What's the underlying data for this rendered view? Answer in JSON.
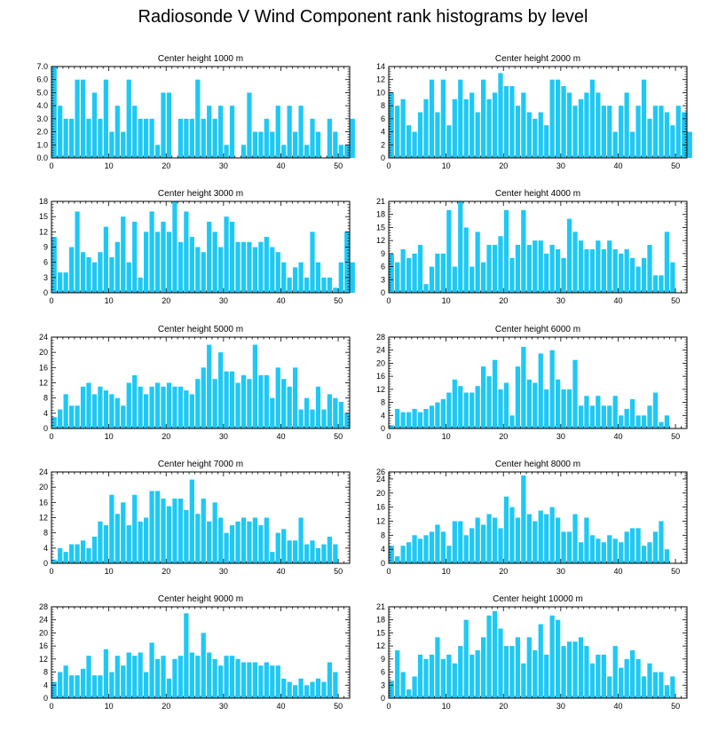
{
  "title": "Radiosonde V Wind Component rank histograms by level",
  "colors": {
    "bar": "#1EC8F5",
    "axis": "#000000",
    "background": "#FFFFFF"
  },
  "chart_data": [
    {
      "type": "bar",
      "title": "Center height 1000 m",
      "xlim": [
        0,
        52
      ],
      "ylim": [
        0,
        7
      ],
      "xticks": [
        0,
        10,
        20,
        30,
        40,
        50
      ],
      "yticks": [
        "0.0",
        "1.0",
        "2.0",
        "3.0",
        "4.0",
        "5.0",
        "6.0",
        "7.0"
      ],
      "values": [
        7,
        4,
        3,
        3,
        6,
        6,
        3,
        5,
        3,
        6,
        2,
        4,
        2,
        6,
        4,
        3,
        3,
        3,
        1,
        5,
        5,
        0,
        3,
        3,
        3,
        6,
        3,
        4,
        3,
        4,
        1,
        4,
        0,
        1,
        5,
        2,
        2,
        3,
        2,
        4,
        1,
        4,
        2,
        4,
        1,
        3,
        2,
        0,
        3,
        2,
        1,
        1,
        3
      ]
    },
    {
      "type": "bar",
      "title": "Center height 2000 m",
      "xlim": [
        0,
        52
      ],
      "ylim": [
        0,
        14
      ],
      "xticks": [
        0,
        10,
        20,
        30,
        40,
        50
      ],
      "yticks": [
        "0",
        "2",
        "4",
        "6",
        "8",
        "10",
        "12",
        "14"
      ],
      "values": [
        10,
        8,
        9,
        5,
        4,
        7,
        9,
        12,
        7,
        12,
        5,
        9,
        12,
        9,
        10,
        7,
        12,
        9,
        10,
        13,
        11,
        11,
        8,
        10,
        7,
        6,
        7,
        5,
        12,
        12,
        11,
        10,
        8,
        9,
        10,
        12,
        10,
        8,
        8,
        4,
        8,
        10,
        4,
        8,
        12,
        6,
        8,
        8,
        7,
        5,
        8,
        7,
        4
      ]
    },
    {
      "type": "bar",
      "title": "Center height 3000 m",
      "xlim": [
        0,
        52
      ],
      "ylim": [
        0,
        18
      ],
      "xticks": [
        0,
        10,
        20,
        30,
        40,
        50
      ],
      "yticks": [
        "0",
        "3",
        "6",
        "9",
        "12",
        "15",
        "18"
      ],
      "values": [
        11,
        4,
        4,
        9,
        16,
        8,
        7,
        6,
        8,
        13,
        7,
        10,
        15,
        6,
        14,
        3,
        12,
        16,
        12,
        14,
        12,
        18,
        10,
        16,
        11,
        9,
        8,
        14,
        12,
        9,
        15,
        14,
        10,
        10,
        10,
        9,
        10,
        11,
        9,
        8,
        6,
        3,
        5,
        6,
        3,
        12,
        6,
        3,
        3,
        1,
        6,
        12,
        6
      ]
    },
    {
      "type": "bar",
      "title": "Center height 4000 m",
      "xlim": [
        0,
        52
      ],
      "ylim": [
        0,
        21
      ],
      "xticks": [
        0,
        10,
        20,
        30,
        40,
        50
      ],
      "yticks": [
        "0",
        "3",
        "6",
        "9",
        "12",
        "15",
        "18",
        "21"
      ],
      "values": [
        9,
        7,
        10,
        8,
        9,
        11,
        2,
        6,
        9,
        9,
        19,
        6,
        21,
        15,
        6,
        14,
        7,
        11,
        11,
        13,
        19,
        8,
        11,
        19,
        11,
        12,
        12,
        9,
        11,
        10,
        8,
        17,
        14,
        12,
        10,
        10,
        12,
        10,
        12,
        10,
        9,
        10,
        8,
        6,
        8,
        11,
        4,
        4,
        14,
        7
      ]
    },
    {
      "type": "bar",
      "title": "Center height 5000 m",
      "xlim": [
        0,
        52
      ],
      "ylim": [
        0,
        24
      ],
      "xticks": [
        0,
        10,
        20,
        30,
        40,
        50
      ],
      "yticks": [
        "0",
        "4",
        "8",
        "12",
        "16",
        "20",
        "24"
      ],
      "values": [
        3,
        5,
        9,
        6,
        6,
        11,
        12,
        9,
        11,
        10,
        9,
        8,
        6,
        12,
        14,
        11,
        9,
        11,
        12,
        11,
        12,
        11,
        11,
        10,
        9,
        13,
        16,
        22,
        13,
        20,
        15,
        15,
        12,
        14,
        13,
        22,
        14,
        14,
        8,
        16,
        13,
        11,
        16,
        5,
        8,
        5,
        11,
        5,
        9,
        8,
        7,
        4
      ]
    },
    {
      "type": "bar",
      "title": "Center height 6000 m",
      "xlim": [
        0,
        52
      ],
      "ylim": [
        0,
        28
      ],
      "xticks": [
        0,
        10,
        20,
        30,
        40,
        50
      ],
      "yticks": [
        "0",
        "4",
        "8",
        "12",
        "16",
        "20",
        "24",
        "28"
      ],
      "values": [
        1,
        6,
        5,
        5,
        6,
        5,
        6,
        7,
        8,
        9,
        11,
        15,
        13,
        11,
        11,
        13,
        19,
        16,
        21,
        12,
        14,
        4,
        19,
        25,
        15,
        14,
        23,
        12,
        24,
        15,
        12,
        12,
        21,
        7,
        10,
        7,
        10,
        7,
        7,
        10,
        4,
        6,
        9,
        4,
        4,
        7,
        11,
        2,
        4
      ]
    },
    {
      "type": "bar",
      "title": "Center height 7000 m",
      "xlim": [
        0,
        52
      ],
      "ylim": [
        0,
        24
      ],
      "xticks": [
        0,
        10,
        20,
        30,
        40,
        50
      ],
      "yticks": [
        "0",
        "4",
        "8",
        "12",
        "16",
        "20",
        "24"
      ],
      "values": [
        1,
        4,
        3,
        5,
        5,
        6,
        4,
        7,
        11,
        10,
        18,
        13,
        16,
        10,
        18,
        11,
        12,
        19,
        19,
        17,
        15,
        17,
        17,
        14,
        22,
        13,
        17,
        11,
        16,
        12,
        8,
        10,
        11,
        12,
        11,
        12,
        10,
        12,
        3,
        8,
        9,
        6,
        6,
        12,
        5,
        6,
        4,
        5,
        7,
        5
      ]
    },
    {
      "type": "bar",
      "title": "Center height 8000 m",
      "xlim": [
        0,
        52
      ],
      "ylim": [
        0,
        26
      ],
      "xticks": [
        0,
        10,
        20,
        30,
        40,
        50
      ],
      "yticks": [
        "0",
        "4",
        "8",
        "12",
        "16",
        "20",
        "24",
        "26"
      ],
      "values": [
        5,
        2,
        5,
        6,
        8,
        7,
        8,
        9,
        11,
        9,
        5,
        12,
        12,
        8,
        10,
        13,
        11,
        14,
        13,
        10,
        19,
        16,
        13,
        25,
        14,
        12,
        15,
        14,
        16,
        13,
        9,
        9,
        14,
        6,
        13,
        8,
        7,
        6,
        8,
        7,
        6,
        9,
        10,
        10,
        5,
        6,
        9,
        12,
        4
      ]
    },
    {
      "type": "bar",
      "title": "Center height 9000 m",
      "xlim": [
        0,
        52
      ],
      "ylim": [
        0,
        28
      ],
      "xticks": [
        0,
        10,
        20,
        30,
        40,
        50
      ],
      "yticks": [
        "0",
        "4",
        "8",
        "12",
        "16",
        "20",
        "24",
        "28"
      ],
      "values": [
        5,
        8,
        10,
        7,
        7,
        9,
        13,
        7,
        7,
        15,
        8,
        13,
        10,
        14,
        13,
        14,
        8,
        17,
        12,
        13,
        6,
        12,
        13,
        26,
        14,
        13,
        20,
        14,
        12,
        10,
        13,
        13,
        12,
        11,
        11,
        11,
        10,
        11,
        10,
        10,
        6,
        5,
        4,
        6,
        4,
        5,
        6,
        5,
        11,
        8
      ]
    },
    {
      "type": "bar",
      "title": "Center height 10000 m",
      "xlim": [
        0,
        52
      ],
      "ylim": [
        0,
        21
      ],
      "xticks": [
        0,
        10,
        20,
        30,
        40,
        50
      ],
      "yticks": [
        "0",
        "3",
        "6",
        "9",
        "12",
        "15",
        "18",
        "21"
      ],
      "values": [
        4,
        11,
        6,
        2,
        5,
        10,
        9,
        10,
        14,
        9,
        10,
        8,
        12,
        18,
        10,
        11,
        14,
        19,
        20,
        16,
        12,
        12,
        14,
        8,
        14,
        11,
        17,
        10,
        19,
        18,
        12,
        13,
        13,
        14,
        12,
        8,
        10,
        10,
        5,
        12,
        7,
        9,
        11,
        9,
        5,
        8,
        6,
        6,
        3,
        5
      ]
    }
  ]
}
